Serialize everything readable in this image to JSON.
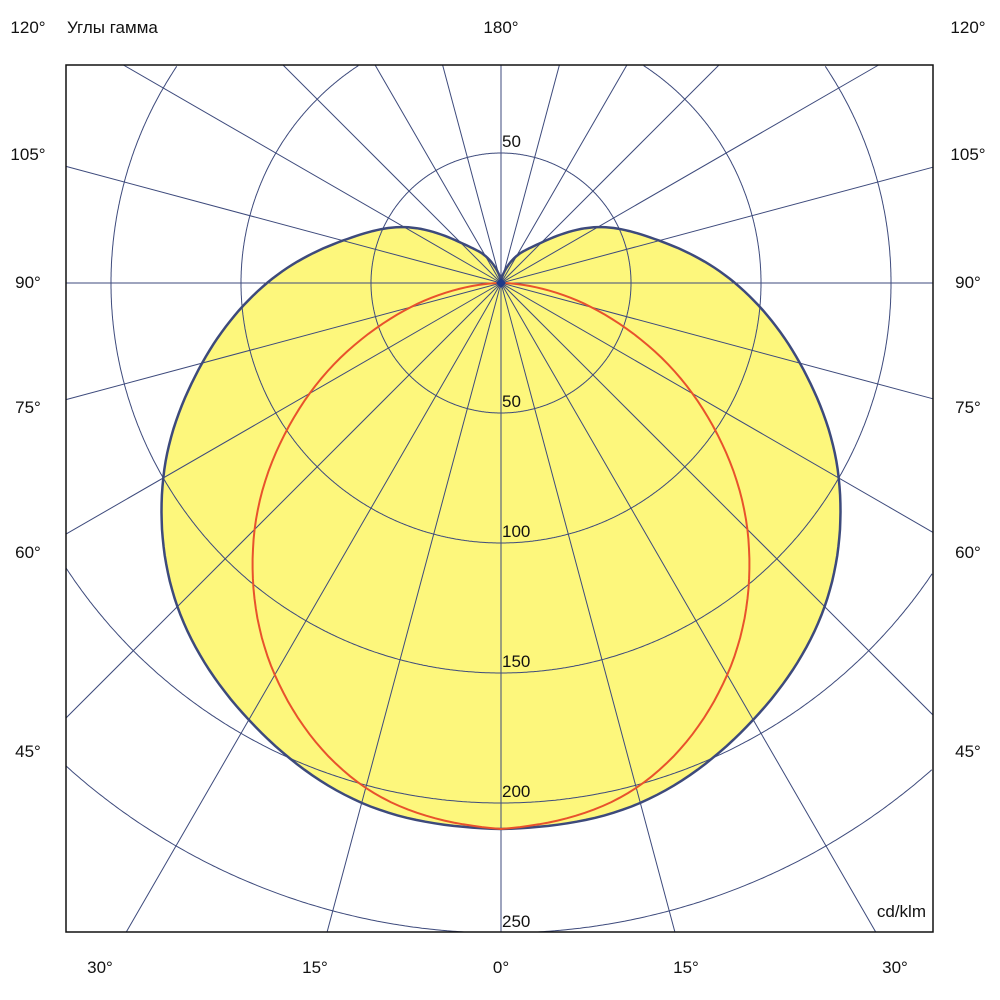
{
  "chart_data": {
    "type": "polar",
    "title": "Углы гамма",
    "unit_label": "cd/klm",
    "radial_ticks": [
      50,
      100,
      150,
      200,
      250
    ],
    "upper_radial_tick": "50",
    "radial_max": 250,
    "angle_step_deg": 15,
    "angle_labels": {
      "top": "180°",
      "left": [
        "120°",
        "105°",
        "90°",
        "75°",
        "60°",
        "45°"
      ],
      "right": [
        "120°",
        "105°",
        "90°",
        "75°",
        "60°",
        "45°"
      ],
      "bottom": [
        "30°",
        "15°",
        "0°",
        "15°",
        "30°"
      ]
    },
    "gamma": [
      0,
      15,
      30,
      45,
      60,
      75,
      90,
      105,
      120,
      135,
      150,
      165,
      180
    ],
    "series": [
      {
        "color": "#3d4a7c",
        "fill": "#fdf77c",
        "values": [
          210,
          207,
          194,
          176,
          150,
          119,
          90,
          63,
          43,
          22,
          12,
          4,
          0
        ]
      },
      {
        "color": "#e8522c",
        "values": [
          210,
          201,
          174,
          134,
          85,
          36,
          0,
          null,
          null,
          null,
          null,
          null,
          null
        ]
      }
    ],
    "grid": true
  }
}
